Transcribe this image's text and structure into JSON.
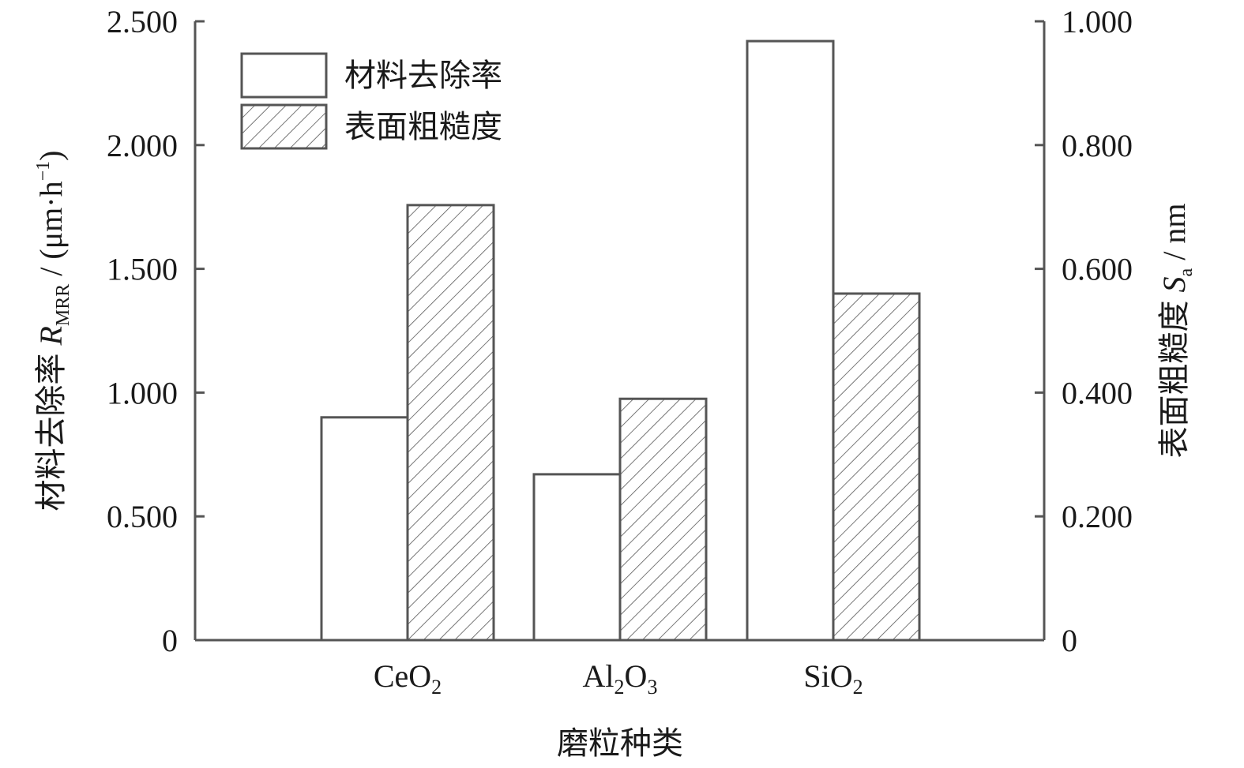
{
  "chart_data": {
    "type": "bar",
    "categories": [
      {
        "base": "CeO",
        "parts": [
          {
            "t": "Ce",
            "sub": ""
          },
          {
            "t": "O",
            "sub": "2"
          }
        ]
      },
      {
        "base": "Al2O3",
        "parts": [
          {
            "t": "Al",
            "sub": "2"
          },
          {
            "t": "O",
            "sub": "3"
          }
        ]
      },
      {
        "base": "SiO2",
        "parts": [
          {
            "t": "Si",
            "sub": ""
          },
          {
            "t": "O",
            "sub": "2"
          }
        ]
      }
    ],
    "series": [
      {
        "name": "材料去除率",
        "axis": "left",
        "pattern": "none",
        "values": [
          0.9,
          0.67,
          2.42
        ]
      },
      {
        "name": "表面粗糙度",
        "axis": "right",
        "pattern": "hatch",
        "values": [
          0.703,
          0.39,
          0.56
        ]
      }
    ],
    "xlabel": "磨粒种类",
    "ylabel_left": {
      "prefix": "材料去除率 ",
      "var": "R",
      "sub": "MRR",
      "unit": " / (μm·h",
      "sup": "−1",
      "close": ")"
    },
    "ylabel_right": {
      "prefix": "表面粗糙度 ",
      "var": "S",
      "sub": "a",
      "unit": " / nm"
    },
    "ylim_left": [
      0,
      2.5
    ],
    "ylim_right": [
      0,
      1.0
    ],
    "yticks_left": [
      "0",
      "0.500",
      "1.000",
      "1.500",
      "2.000",
      "2.500"
    ],
    "yticks_right": [
      "0",
      "0.200",
      "0.400",
      "0.600",
      "0.800",
      "1.000"
    ],
    "legend_position": "top-left",
    "grid": false
  }
}
